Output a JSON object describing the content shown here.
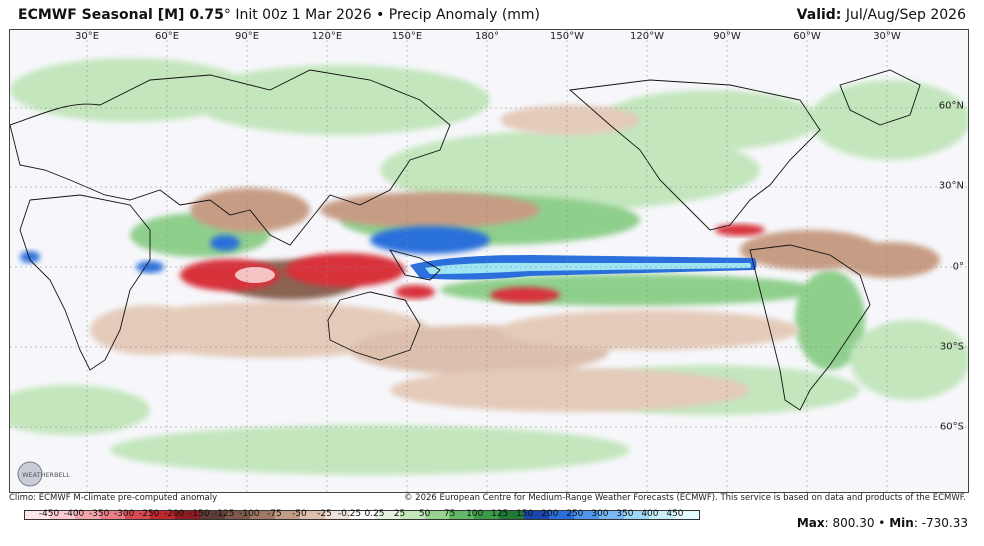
{
  "title": {
    "model": "ECMWF Seasonal [M] 0.75",
    "degree": "°",
    "init": "Init 00z 1 Mar 2026",
    "bullet": "•",
    "field": "Precip Anomaly (mm)",
    "valid_label": "Valid:",
    "valid_value": "Jul/Aug/Sep 2026"
  },
  "map": {
    "lon_labels": [
      "30°E",
      "60°E",
      "90°E",
      "120°E",
      "150°E",
      "180°",
      "150°W",
      "120°W",
      "90°W",
      "60°W",
      "30°W"
    ],
    "lat_labels": [
      "60°N",
      "30°N",
      "0°",
      "30°S",
      "60°S"
    ],
    "logo_text": "WEATHERBELL",
    "colors": {
      "ocean": "#f7f7fb",
      "wet_light": "#c3e6bd",
      "wet_mid": "#8fcf8c",
      "wet_dark": "#3b9b47",
      "dry_light": "#e4cbb9",
      "dry_mid": "#c79c84",
      "dry_dark": "#8a6353",
      "very_wet_blue": "#2a6fdb",
      "very_wet_cyan": "#9fe6f4",
      "very_dry_red": "#d8333a",
      "very_dry_pink": "#f6c3c5",
      "coast": "#111111"
    }
  },
  "footer": {
    "climo": "Climo: ECMWF M-climate pre-computed anomaly",
    "copyright": "© 2026 European Centre for Medium-Range Weather Forecasts (ECMWF). This service is based on data and products of the ECMWF."
  },
  "colorbar": {
    "labels": [
      "-450",
      "-400",
      "-350",
      "-300",
      "-250",
      "-200",
      "-150",
      "-125",
      "-100",
      "-75",
      "-50",
      "-25",
      "-0.25",
      "0.25",
      "25",
      "50",
      "75",
      "100",
      "125",
      "150",
      "200",
      "250",
      "300",
      "350",
      "400",
      "450"
    ],
    "colors": [
      "#fde6e8",
      "#fbcbd0",
      "#f4a6ad",
      "#ea7d86",
      "#d84a53",
      "#c1272f",
      "#8f1c22",
      "#5e3c35",
      "#7d5a4c",
      "#a07a66",
      "#c29c86",
      "#dcc0ad",
      "#f0e2d7",
      "#ffffff",
      "#e3f3df",
      "#c3e6bd",
      "#98d391",
      "#63b867",
      "#3b9b47",
      "#1f7a36",
      "#1a46b0",
      "#2a6fdb",
      "#4f97ec",
      "#78b9f4",
      "#9fd8f7",
      "#c8f0fa",
      "#e6fbff"
    ]
  },
  "stats": {
    "max_label": "Max",
    "max_value": "800.30",
    "sep": "•",
    "min_label": "Min",
    "min_value": "-730.33"
  }
}
